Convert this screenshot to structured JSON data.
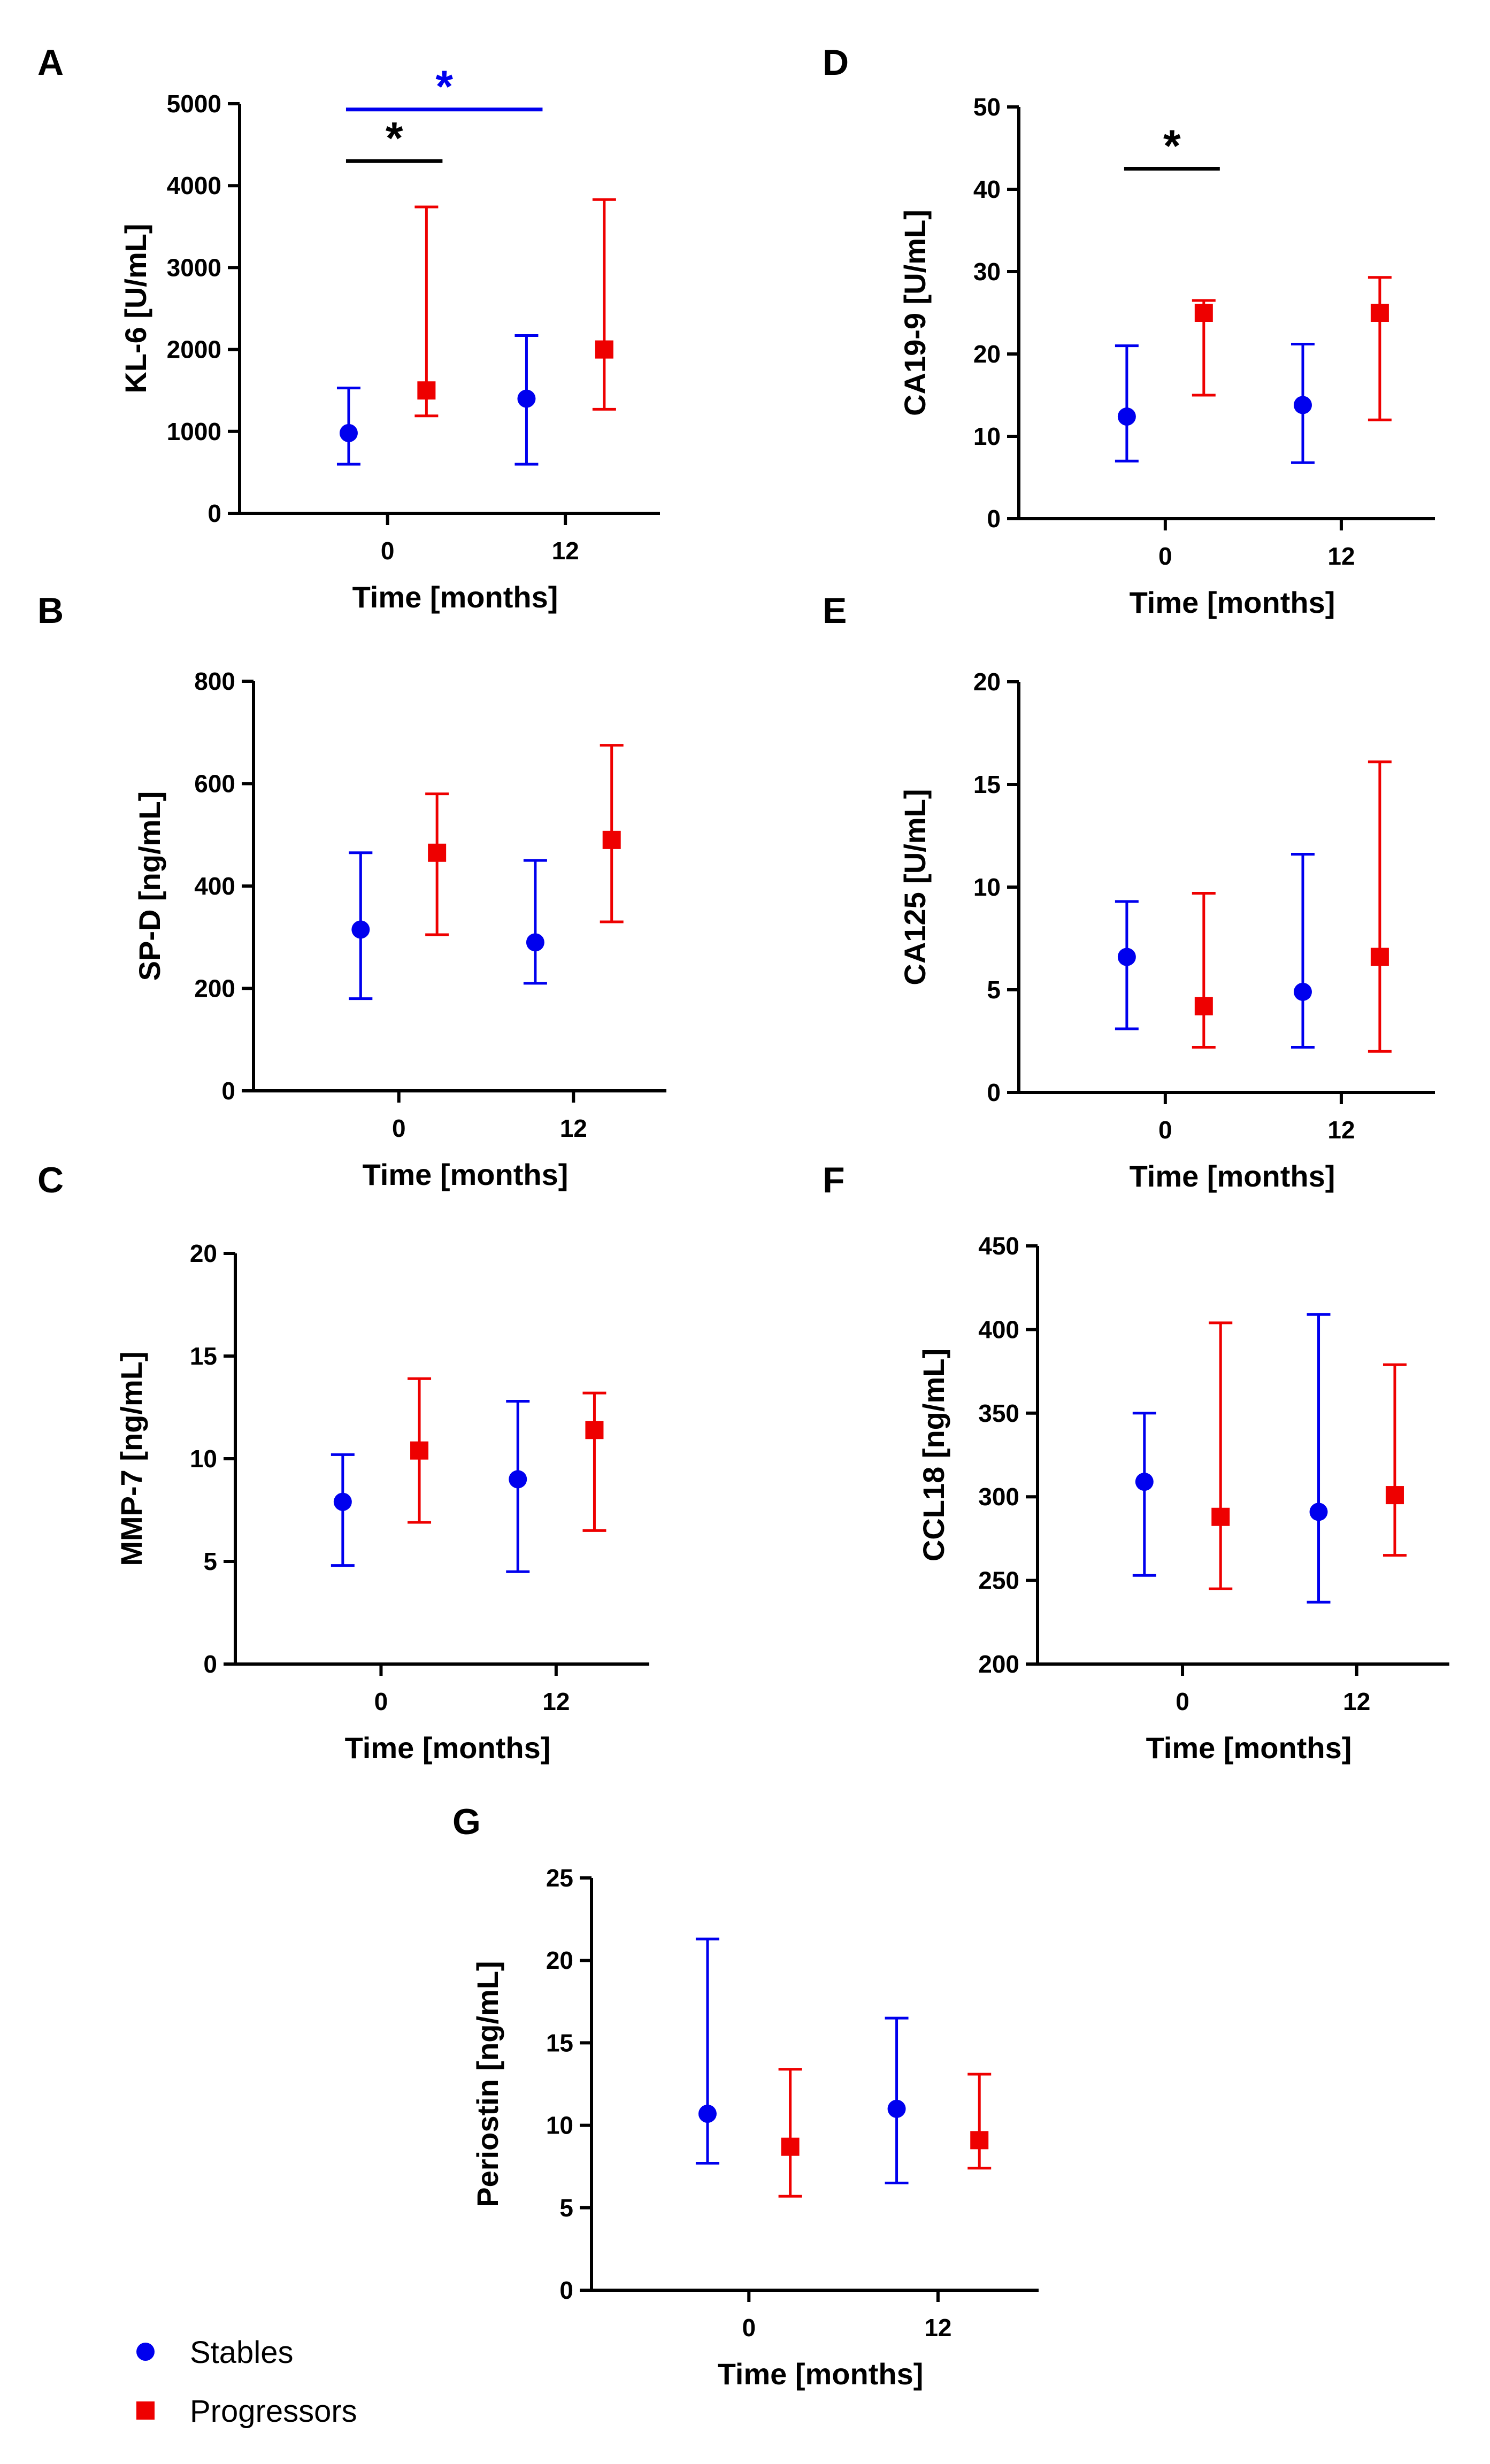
{
  "colors": {
    "stables": "#0000ee",
    "progressors": "#ee0000",
    "axis": "#000000"
  },
  "legend": {
    "items": [
      {
        "label": "Stables",
        "marker": "circle",
        "color": "#0000ee"
      },
      {
        "label": "Progressors",
        "marker": "square",
        "color": "#ee0000"
      }
    ],
    "placement": "bottom-left"
  },
  "chart_data": [
    {
      "panel": "A",
      "type": "scatter",
      "ylabel": "KL-6 [U/mL]",
      "xlabel": "Time  [months]",
      "ylim": [
        0,
        5000
      ],
      "yticks": [
        0,
        1000,
        2000,
        3000,
        4000,
        5000
      ],
      "xtick_labels": [
        "0",
        "12"
      ],
      "series": [
        {
          "name": "Stables",
          "color": "#0000ee",
          "points": [
            {
              "time": "0",
              "median": 980,
              "low": 600,
              "high": 1530
            },
            {
              "time": "12",
              "median": 1400,
              "low": 600,
              "high": 2170
            }
          ]
        },
        {
          "name": "Progressors",
          "color": "#ee0000",
          "points": [
            {
              "time": "0",
              "median": 1500,
              "low": 1190,
              "high": 3740
            },
            {
              "time": "12",
              "median": 2000,
              "low": 1270,
              "high": 3830
            }
          ]
        }
      ],
      "significance": [
        {
          "label": "*",
          "color": "#000000",
          "from": "Stables 0",
          "to": "Progressors 0",
          "y": 4300
        },
        {
          "label": "*",
          "color": "#0000ee",
          "from": "Stables 0",
          "to": "Stables 12",
          "y": 4930
        }
      ]
    },
    {
      "panel": "B",
      "type": "scatter",
      "ylabel": "SP-D [ng/mL]",
      "xlabel": "Time  [months]",
      "ylim": [
        0,
        800
      ],
      "yticks": [
        0,
        200,
        400,
        600,
        800
      ],
      "xtick_labels": [
        "0",
        "12"
      ],
      "series": [
        {
          "name": "Stables",
          "color": "#0000ee",
          "points": [
            {
              "time": "0",
              "median": 315,
              "low": 180,
              "high": 465
            },
            {
              "time": "12",
              "median": 290,
              "low": 210,
              "high": 450
            }
          ]
        },
        {
          "name": "Progressors",
          "color": "#ee0000",
          "points": [
            {
              "time": "0",
              "median": 465,
              "low": 305,
              "high": 580
            },
            {
              "time": "12",
              "median": 490,
              "low": 330,
              "high": 675
            }
          ]
        }
      ],
      "significance": []
    },
    {
      "panel": "C",
      "type": "scatter",
      "ylabel": "MMP-7 [ng/mL]",
      "xlabel": "Time  [months]",
      "ylim": [
        0,
        20
      ],
      "yticks": [
        0,
        5,
        10,
        15,
        20
      ],
      "xtick_labels": [
        "0",
        "12"
      ],
      "series": [
        {
          "name": "Stables",
          "color": "#0000ee",
          "points": [
            {
              "time": "0",
              "median": 7.9,
              "low": 4.8,
              "high": 10.2
            },
            {
              "time": "12",
              "median": 9.0,
              "low": 4.5,
              "high": 12.8
            }
          ]
        },
        {
          "name": "Progressors",
          "color": "#ee0000",
          "points": [
            {
              "time": "0",
              "median": 10.4,
              "low": 6.9,
              "high": 13.9
            },
            {
              "time": "12",
              "median": 11.4,
              "low": 6.5,
              "high": 13.2
            }
          ]
        }
      ],
      "significance": []
    },
    {
      "panel": "D",
      "type": "scatter",
      "ylabel": "CA19-9 [U/mL]",
      "xlabel": "Time  [months]",
      "ylim": [
        0,
        50
      ],
      "yticks": [
        0,
        10,
        20,
        30,
        40,
        50
      ],
      "xtick_labels": [
        "0",
        "12"
      ],
      "series": [
        {
          "name": "Stables",
          "color": "#0000ee",
          "points": [
            {
              "time": "0",
              "median": 12.4,
              "low": 7.0,
              "high": 21.0
            },
            {
              "time": "12",
              "median": 13.8,
              "low": 6.8,
              "high": 21.2
            }
          ]
        },
        {
          "name": "Progressors",
          "color": "#ee0000",
          "points": [
            {
              "time": "0",
              "median": 25.0,
              "low": 15.0,
              "high": 26.5
            },
            {
              "time": "12",
              "median": 25.0,
              "low": 12.0,
              "high": 29.3
            }
          ]
        }
      ],
      "significance": [
        {
          "label": "*",
          "color": "#000000",
          "from": "Stables 0",
          "to": "Progressors 0",
          "y": 42.5
        }
      ]
    },
    {
      "panel": "E",
      "type": "scatter",
      "ylabel": "CA125 [U/mL]",
      "xlabel": "Time  [months]",
      "ylim": [
        0,
        20
      ],
      "yticks": [
        0,
        5,
        10,
        15,
        20
      ],
      "xtick_labels": [
        "0",
        "12"
      ],
      "series": [
        {
          "name": "Stables",
          "color": "#0000ee",
          "points": [
            {
              "time": "0",
              "median": 6.6,
              "low": 3.1,
              "high": 9.3
            },
            {
              "time": "12",
              "median": 4.9,
              "low": 2.2,
              "high": 11.6
            }
          ]
        },
        {
          "name": "Progressors",
          "color": "#ee0000",
          "points": [
            {
              "time": "0",
              "median": 4.2,
              "low": 2.2,
              "high": 9.7
            },
            {
              "time": "12",
              "median": 6.6,
              "low": 2.0,
              "high": 16.1
            }
          ]
        }
      ],
      "significance": []
    },
    {
      "panel": "F",
      "type": "scatter",
      "ylabel": "CCL18 [ng/mL]",
      "xlabel": "Time  [months]",
      "ylim": [
        200,
        450
      ],
      "yticks": [
        200,
        250,
        300,
        350,
        400,
        450
      ],
      "xtick_labels": [
        "0",
        "12"
      ],
      "series": [
        {
          "name": "Stables",
          "color": "#0000ee",
          "points": [
            {
              "time": "0",
              "median": 309,
              "low": 253,
              "high": 350
            },
            {
              "time": "12",
              "median": 291,
              "low": 237,
              "high": 409
            }
          ]
        },
        {
          "name": "Progressors",
          "color": "#ee0000",
          "points": [
            {
              "time": "0",
              "median": 288,
              "low": 245,
              "high": 404
            },
            {
              "time": "12",
              "median": 301,
              "low": 265,
              "high": 379
            }
          ]
        }
      ],
      "significance": []
    },
    {
      "panel": "G",
      "type": "scatter",
      "ylabel": "Periostin [ng/mL]",
      "xlabel": "Time  [months]",
      "ylim": [
        0,
        25
      ],
      "yticks": [
        0,
        5,
        10,
        15,
        20,
        25
      ],
      "xtick_labels": [
        "0",
        "12"
      ],
      "series": [
        {
          "name": "Stables",
          "color": "#0000ee",
          "points": [
            {
              "time": "0",
              "median": 10.7,
              "low": 7.7,
              "high": 21.3
            },
            {
              "time": "12",
              "median": 11.0,
              "low": 6.5,
              "high": 16.5
            }
          ]
        },
        {
          "name": "Progressors",
          "color": "#ee0000",
          "points": [
            {
              "time": "0",
              "median": 8.7,
              "low": 5.7,
              "high": 13.4
            },
            {
              "time": "12",
              "median": 9.1,
              "low": 7.4,
              "high": 13.1
            }
          ]
        }
      ],
      "significance": []
    }
  ]
}
